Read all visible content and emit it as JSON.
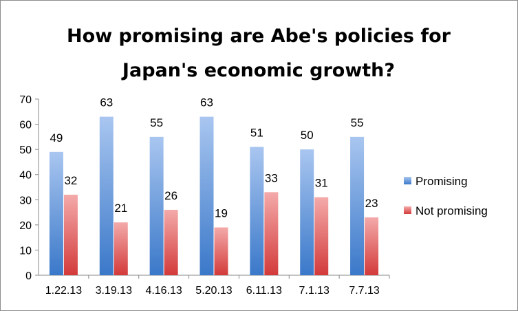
{
  "chart_data": {
    "type": "bar",
    "title": [
      "How promising are Abe's policies for",
      "Japan's economic growth?"
    ],
    "categories": [
      "1.22.13",
      "3.19.13",
      "4.16.13",
      "5.20.13",
      "6.11.13",
      "7.1.13",
      "7.7.13"
    ],
    "series": [
      {
        "name": "Promising",
        "values": [
          49,
          63,
          55,
          63,
          51,
          50,
          55
        ],
        "color": "#4f81bd"
      },
      {
        "name": "Not promising",
        "values": [
          32,
          21,
          26,
          19,
          33,
          31,
          23
        ],
        "color": "#e04b4b"
      }
    ],
    "yticks": [
      0,
      10,
      20,
      30,
      40,
      50,
      60,
      70
    ],
    "ylim": [
      0,
      70
    ],
    "xlabel": "",
    "ylabel": "",
    "legend": "right",
    "grid": false
  }
}
